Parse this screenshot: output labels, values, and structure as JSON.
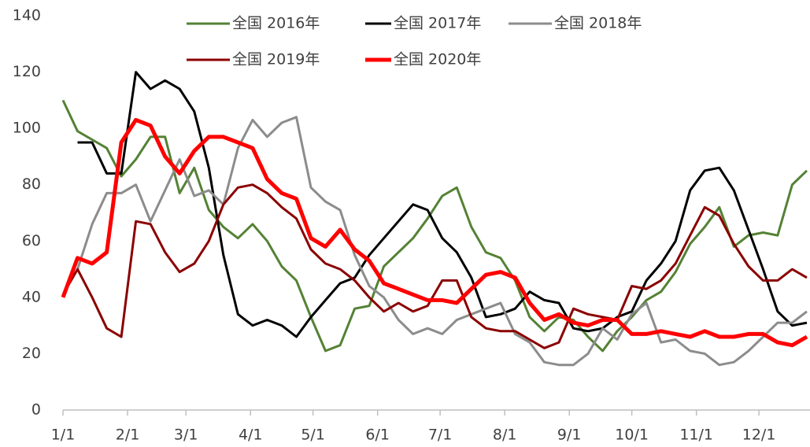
{
  "chart_data": {
    "type": "line",
    "x": [
      1,
      8,
      15,
      22,
      29,
      36,
      43,
      50,
      57,
      64,
      71,
      78,
      85,
      92,
      99,
      106,
      113,
      120,
      127,
      134,
      141,
      148,
      155,
      162,
      169,
      176,
      183,
      190,
      197,
      204,
      211,
      218,
      225,
      232,
      239,
      246,
      253,
      260,
      267,
      274,
      281,
      288,
      295,
      302,
      309,
      316,
      323,
      330,
      337,
      344,
      351,
      358
    ],
    "xlim": [
      1,
      360
    ],
    "xticks": [
      {
        "value": 1,
        "label": "1/1"
      },
      {
        "value": 32,
        "label": "2/1"
      },
      {
        "value": 60,
        "label": "3/1"
      },
      {
        "value": 91,
        "label": "4/1"
      },
      {
        "value": 121,
        "label": "5/1"
      },
      {
        "value": 152,
        "label": "6/1"
      },
      {
        "value": 182,
        "label": "7/1"
      },
      {
        "value": 213,
        "label": "8/1"
      },
      {
        "value": 244,
        "label": "9/1"
      },
      {
        "value": 274,
        "label": "10/1"
      },
      {
        "value": 305,
        "label": "11/1"
      },
      {
        "value": 335,
        "label": "12/1"
      }
    ],
    "ylim": [
      0,
      140
    ],
    "yticks": [
      0,
      20,
      40,
      60,
      80,
      100,
      120,
      140
    ],
    "grid": false,
    "legend": "top",
    "series": [
      {
        "name": "全国 2016年",
        "color": "#548235",
        "width": 3,
        "values": [
          110,
          99,
          96,
          93,
          83,
          89,
          97,
          97,
          77,
          86,
          71,
          65,
          61,
          66,
          60,
          51,
          46,
          33,
          21,
          23,
          36,
          37,
          51,
          56,
          61,
          68,
          76,
          79,
          65,
          56,
          54,
          46,
          33,
          28,
          33,
          32,
          26,
          21,
          28,
          33,
          39,
          42,
          49,
          59,
          65,
          72,
          58,
          62,
          63,
          62,
          80,
          85
        ]
      },
      {
        "name": "全国 2017年",
        "color": "#000000",
        "width": 3,
        "values": [
          null,
          95,
          95,
          84,
          84,
          120,
          114,
          117,
          114,
          106,
          86,
          55,
          34,
          30,
          32,
          30,
          26,
          33,
          39,
          45,
          47,
          55,
          61,
          67,
          73,
          71,
          61,
          56,
          47,
          33,
          34,
          36,
          42,
          39,
          38,
          29,
          28,
          29,
          33,
          35,
          46,
          52,
          60,
          78,
          85,
          86,
          78,
          64,
          50,
          35,
          30,
          31
        ]
      },
      {
        "name": "全国 2018年",
        "color": "#8c8c8c",
        "width": 3,
        "values": [
          null,
          50,
          66,
          77,
          77,
          80,
          67,
          78,
          89,
          76,
          78,
          73,
          93,
          103,
          97,
          102,
          104,
          79,
          74,
          71,
          55,
          44,
          40,
          32,
          27,
          29,
          27,
          32,
          34,
          36,
          38,
          27,
          24,
          17,
          16,
          16,
          20,
          29,
          25,
          34,
          38,
          24,
          25,
          21,
          20,
          16,
          17,
          21,
          26,
          31,
          31,
          35
        ]
      },
      {
        "name": "全国 2019年",
        "color": "#8b0000",
        "width": 3,
        "values": [
          41,
          50,
          40,
          29,
          26,
          67,
          66,
          56,
          49,
          52,
          60,
          73,
          79,
          80,
          77,
          72,
          68,
          57,
          52,
          50,
          46,
          40,
          35,
          38,
          35,
          37,
          46,
          46,
          33,
          29,
          28,
          28,
          25,
          22,
          24,
          36,
          34,
          33,
          32,
          44,
          43,
          46,
          52,
          62,
          72,
          69,
          59,
          51,
          46,
          46,
          50,
          47
        ]
      },
      {
        "name": "全国 2020年",
        "color": "#ff0000",
        "width": 5,
        "values": [
          40,
          54,
          52,
          56,
          95,
          103,
          101,
          90,
          84,
          92,
          97,
          97,
          95,
          93,
          82,
          77,
          75,
          61,
          58,
          64,
          57,
          53,
          45,
          43,
          41,
          39,
          39,
          38,
          43,
          48,
          49,
          47,
          38,
          32,
          34,
          31,
          30,
          32,
          32,
          27,
          27,
          28,
          27,
          26,
          28,
          26,
          26,
          27,
          27,
          24,
          23,
          26
        ]
      }
    ]
  }
}
